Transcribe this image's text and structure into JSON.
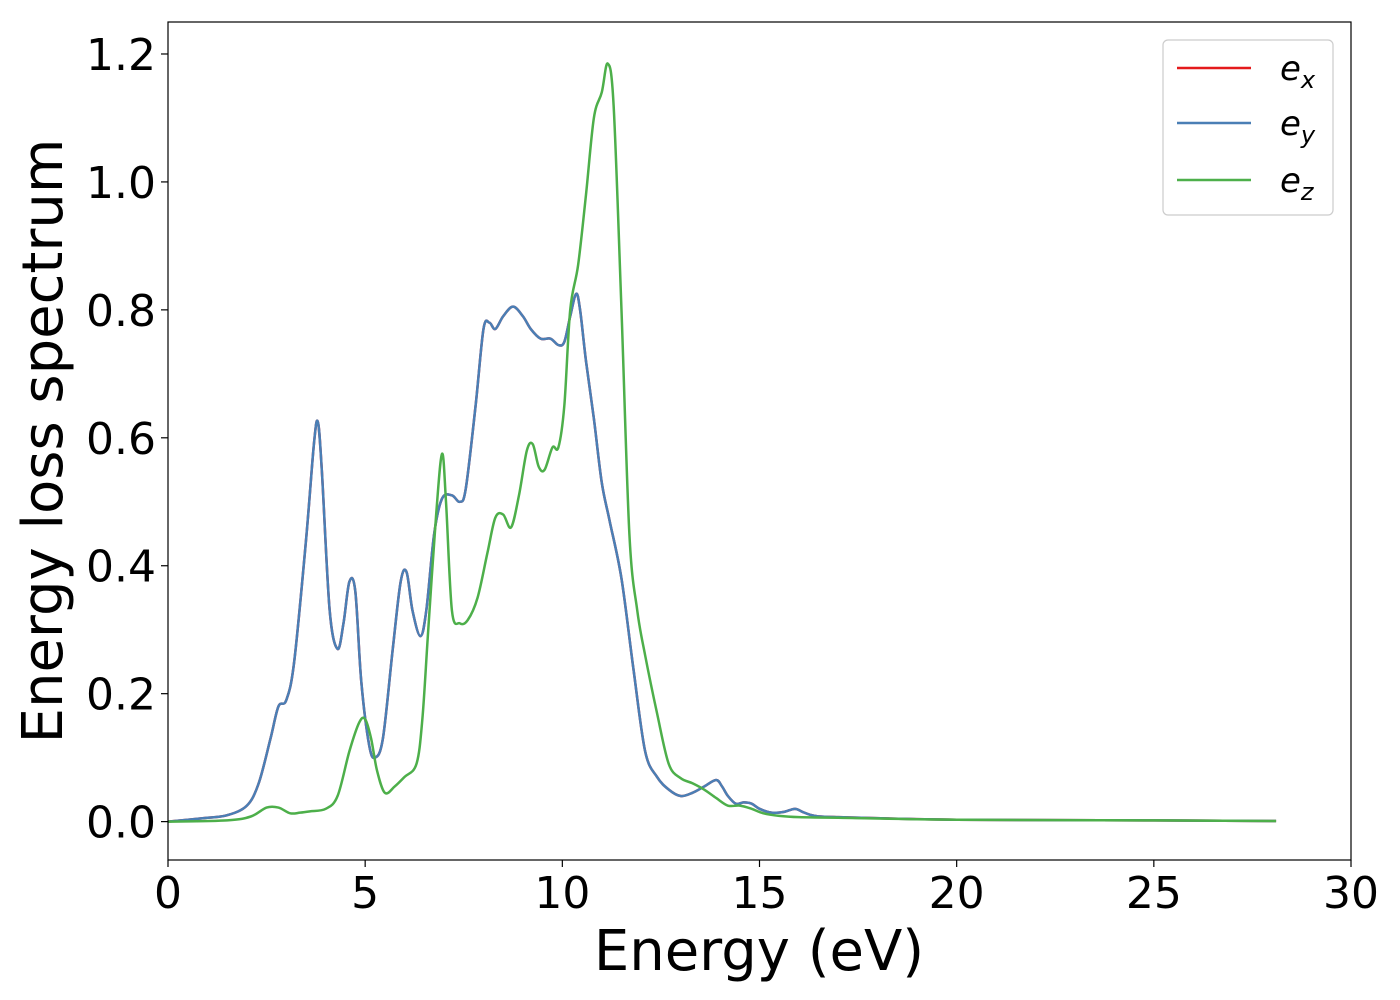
{
  "chart_data": {
    "type": "line",
    "xlabel": "Energy (eV)",
    "ylabel": "Energy loss spectrum",
    "xlim": [
      0,
      30
    ],
    "ylim": [
      -0.06,
      1.25
    ],
    "xticks": [
      0,
      5,
      10,
      15,
      20,
      25,
      30
    ],
    "yticks": [
      0.0,
      0.2,
      0.4,
      0.6,
      0.8,
      1.0,
      1.2
    ],
    "xtick_labels": [
      "0",
      "5",
      "10",
      "15",
      "20",
      "25",
      "30"
    ],
    "ytick_labels": [
      "0.0",
      "0.2",
      "0.4",
      "0.6",
      "0.8",
      "1.0",
      "1.2"
    ],
    "grid": false,
    "legend_position": "top-right",
    "series": [
      {
        "name": "e_x",
        "legend_base": "e",
        "legend_sub": "x",
        "color": "#e41a1c",
        "x": [
          0,
          1,
          1.5,
          2,
          2.3,
          2.6,
          2.8,
          3.0,
          3.2,
          3.5,
          3.7,
          3.8,
          3.9,
          4.1,
          4.3,
          4.45,
          4.6,
          4.75,
          4.9,
          5.1,
          5.25,
          5.45,
          5.7,
          5.9,
          6.05,
          6.2,
          6.4,
          6.55,
          6.75,
          6.95,
          7.2,
          7.4,
          7.55,
          7.8,
          8.0,
          8.15,
          8.3,
          8.5,
          8.75,
          9.0,
          9.2,
          9.45,
          9.7,
          9.9,
          10.05,
          10.2,
          10.35,
          10.45,
          10.6,
          10.8,
          11.0,
          11.2,
          11.5,
          11.8,
          12.1,
          12.4,
          12.7,
          13.0,
          13.3,
          13.6,
          13.9,
          14.05,
          14.2,
          14.4,
          14.6,
          14.8,
          15.0,
          15.3,
          15.6,
          15.9,
          16.1,
          16.4,
          17.0,
          20.0,
          25.0,
          28.1
        ],
        "y": [
          0.0,
          0.006,
          0.01,
          0.025,
          0.06,
          0.13,
          0.18,
          0.19,
          0.25,
          0.44,
          0.59,
          0.625,
          0.55,
          0.33,
          0.27,
          0.31,
          0.375,
          0.36,
          0.22,
          0.12,
          0.1,
          0.13,
          0.27,
          0.375,
          0.39,
          0.33,
          0.29,
          0.33,
          0.45,
          0.505,
          0.51,
          0.5,
          0.52,
          0.65,
          0.77,
          0.78,
          0.77,
          0.79,
          0.805,
          0.79,
          0.77,
          0.755,
          0.755,
          0.745,
          0.75,
          0.79,
          0.825,
          0.8,
          0.72,
          0.63,
          0.53,
          0.47,
          0.38,
          0.24,
          0.11,
          0.07,
          0.05,
          0.04,
          0.045,
          0.055,
          0.065,
          0.055,
          0.04,
          0.028,
          0.03,
          0.028,
          0.02,
          0.014,
          0.015,
          0.02,
          0.015,
          0.009,
          0.007,
          0.003,
          0.002,
          0.001
        ]
      },
      {
        "name": "e_y",
        "legend_base": "e",
        "legend_sub": "y",
        "color": "#4a7fb5",
        "x": [
          0,
          1,
          1.5,
          2,
          2.3,
          2.6,
          2.8,
          3.0,
          3.2,
          3.5,
          3.7,
          3.8,
          3.9,
          4.1,
          4.3,
          4.45,
          4.6,
          4.75,
          4.9,
          5.1,
          5.25,
          5.45,
          5.7,
          5.9,
          6.05,
          6.2,
          6.4,
          6.55,
          6.75,
          6.95,
          7.2,
          7.4,
          7.55,
          7.8,
          8.0,
          8.15,
          8.3,
          8.5,
          8.75,
          9.0,
          9.2,
          9.45,
          9.7,
          9.9,
          10.05,
          10.2,
          10.35,
          10.45,
          10.6,
          10.8,
          11.0,
          11.2,
          11.5,
          11.8,
          12.1,
          12.4,
          12.7,
          13.0,
          13.3,
          13.6,
          13.9,
          14.05,
          14.2,
          14.4,
          14.6,
          14.8,
          15.0,
          15.3,
          15.6,
          15.9,
          16.1,
          16.4,
          17.0,
          20.0,
          25.0,
          28.1
        ],
        "y": [
          0.0,
          0.006,
          0.01,
          0.025,
          0.06,
          0.13,
          0.18,
          0.19,
          0.25,
          0.44,
          0.59,
          0.625,
          0.55,
          0.33,
          0.27,
          0.31,
          0.375,
          0.36,
          0.22,
          0.12,
          0.1,
          0.13,
          0.27,
          0.375,
          0.39,
          0.33,
          0.29,
          0.33,
          0.45,
          0.505,
          0.51,
          0.5,
          0.52,
          0.65,
          0.77,
          0.78,
          0.77,
          0.79,
          0.805,
          0.79,
          0.77,
          0.755,
          0.755,
          0.745,
          0.75,
          0.79,
          0.825,
          0.8,
          0.72,
          0.63,
          0.53,
          0.47,
          0.38,
          0.24,
          0.11,
          0.07,
          0.05,
          0.04,
          0.045,
          0.055,
          0.065,
          0.055,
          0.04,
          0.028,
          0.03,
          0.028,
          0.02,
          0.014,
          0.015,
          0.02,
          0.015,
          0.009,
          0.007,
          0.003,
          0.002,
          0.001
        ]
      },
      {
        "name": "e_z",
        "legend_base": "e",
        "legend_sub": "z",
        "color": "#4daf4a",
        "x": [
          0,
          1.5,
          2.1,
          2.5,
          2.8,
          3.1,
          3.35,
          3.6,
          4.0,
          4.3,
          4.6,
          4.85,
          5.0,
          5.15,
          5.3,
          5.5,
          5.75,
          6.0,
          6.3,
          6.45,
          6.6,
          6.8,
          6.95,
          7.05,
          7.2,
          7.4,
          7.6,
          7.85,
          8.1,
          8.3,
          8.5,
          8.7,
          8.9,
          9.1,
          9.25,
          9.4,
          9.55,
          9.75,
          9.9,
          10.05,
          10.2,
          10.4,
          10.6,
          10.8,
          11.0,
          11.15,
          11.3,
          11.5,
          11.7,
          11.9,
          12.1,
          12.4,
          12.7,
          13.0,
          13.3,
          13.6,
          13.9,
          14.2,
          14.5,
          14.8,
          15.1,
          15.5,
          16.0,
          17.0,
          20.0,
          25.0,
          28.1
        ],
        "y": [
          0.0,
          0.002,
          0.008,
          0.022,
          0.022,
          0.013,
          0.014,
          0.016,
          0.02,
          0.04,
          0.11,
          0.155,
          0.16,
          0.13,
          0.08,
          0.045,
          0.055,
          0.07,
          0.09,
          0.16,
          0.3,
          0.48,
          0.575,
          0.5,
          0.33,
          0.31,
          0.315,
          0.35,
          0.42,
          0.475,
          0.48,
          0.46,
          0.51,
          0.58,
          0.59,
          0.555,
          0.55,
          0.585,
          0.585,
          0.65,
          0.8,
          0.87,
          0.98,
          1.1,
          1.14,
          1.185,
          1.12,
          0.8,
          0.45,
          0.33,
          0.26,
          0.17,
          0.09,
          0.068,
          0.06,
          0.05,
          0.037,
          0.025,
          0.025,
          0.02,
          0.013,
          0.009,
          0.007,
          0.006,
          0.003,
          0.002,
          0.001
        ]
      }
    ]
  }
}
